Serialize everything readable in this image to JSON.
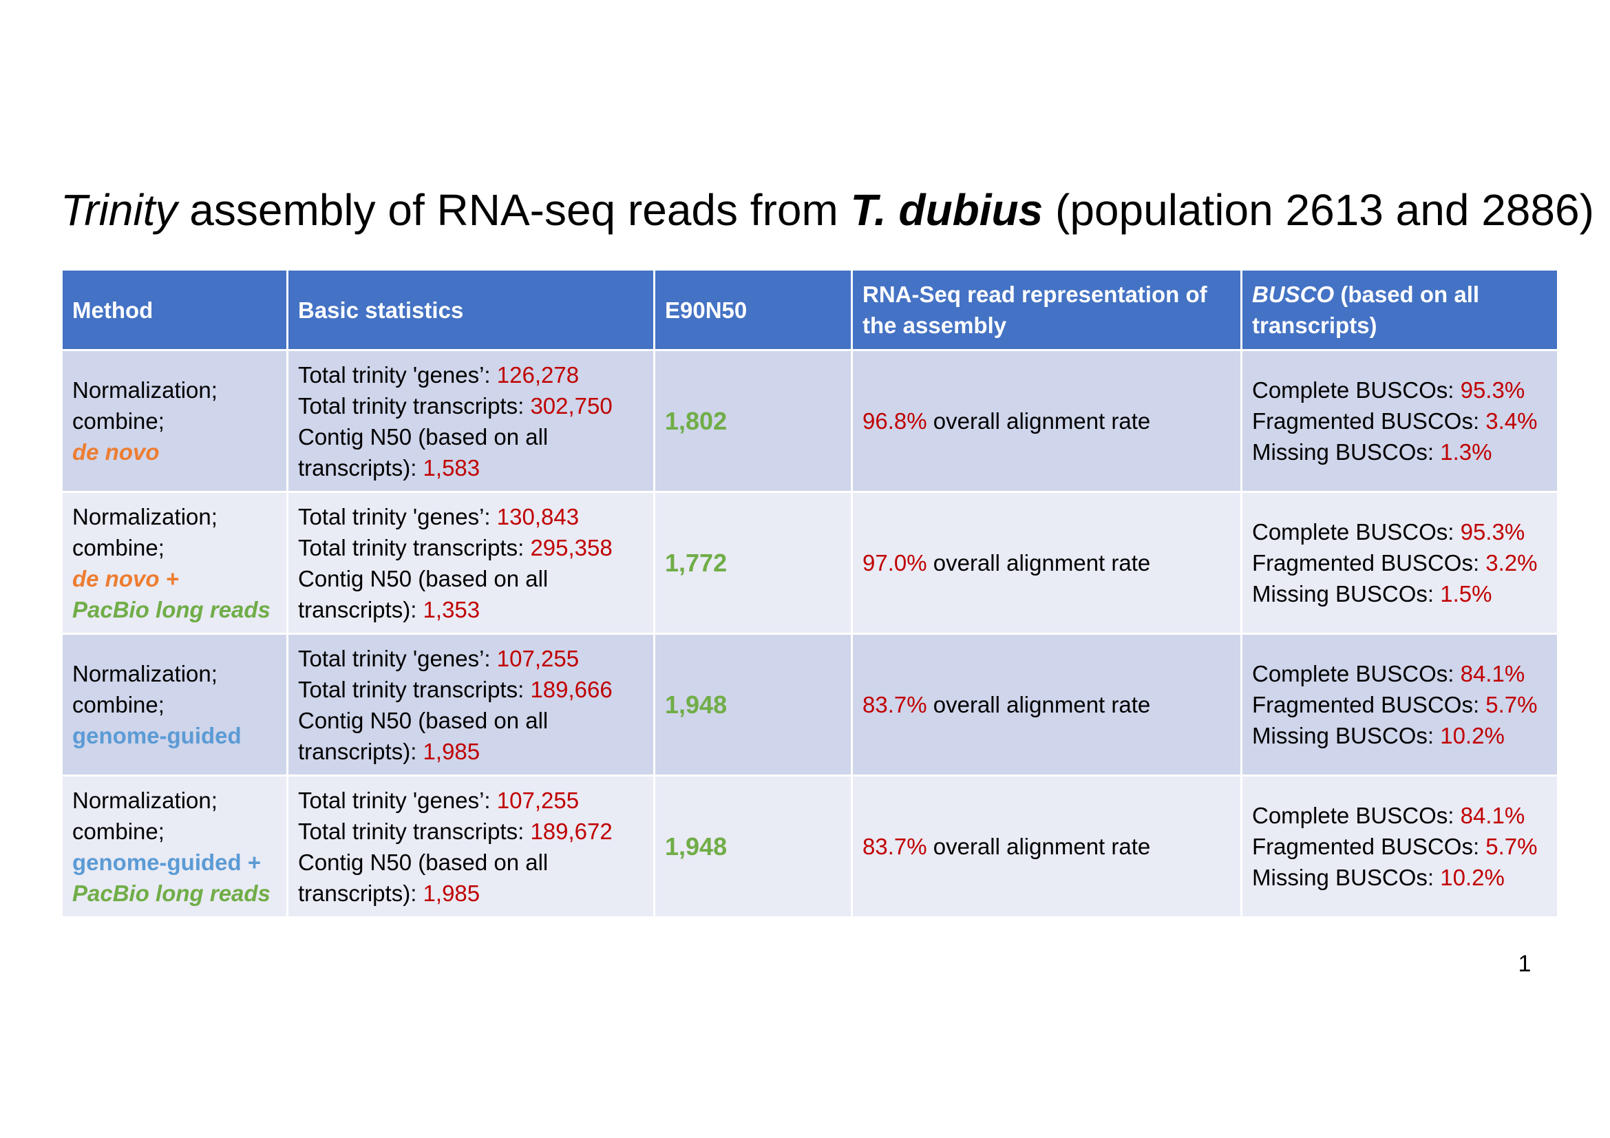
{
  "title": {
    "part1": "Trinity",
    "part2": " assembly of RNA-seq reads from ",
    "part3": "T. dubius",
    "part4": " (population 2613 and 2886)"
  },
  "headers": {
    "method": "Method",
    "basic": "Basic statistics",
    "e90n50": "E90N50",
    "rnaseq": "RNA-Seq read representation of the assembly",
    "busco_italic": "BUSCO",
    "busco_rest": " (based on all transcripts)"
  },
  "labels": {
    "genes": "Total trinity 'genes’: ",
    "transcripts": "Total trinity transcripts: ",
    "n50_a": "Contig N50 (based on all",
    "n50_b": "transcripts): ",
    "alignment": " overall alignment rate",
    "complete": "Complete BUSCOs: ",
    "fragmented": "Fragmented BUSCOs: ",
    "missing": "Missing BUSCOs: ",
    "norm": "Normalization;",
    "combine": "combine;"
  },
  "rows": [
    {
      "method_a": "de novo",
      "method_b": "",
      "genes": "126,278",
      "transcripts": "302,750",
      "n50": "1,583",
      "e90n50": "1,802",
      "alignment": "96.8%",
      "complete": "95.3%",
      "fragmented": "3.4%",
      "missing": "1.3%"
    },
    {
      "method_a": "de novo +",
      "method_b": "PacBio long reads",
      "genes": "130,843",
      "transcripts": "295,358",
      "n50": "1,353",
      "e90n50": "1,772",
      "alignment": "97.0%",
      "complete": "95.3%",
      "fragmented": "3.2%",
      "missing": "1.5%"
    },
    {
      "method_a": "genome-guided",
      "method_b": "",
      "genes": "107,255",
      "transcripts": "189,666",
      "n50": "1,985",
      "e90n50": "1,948",
      "alignment": "83.7%",
      "complete": "84.1%",
      "fragmented": "5.7%",
      "missing": "10.2%"
    },
    {
      "method_a": "genome-guided +",
      "method_b": "PacBio long reads",
      "genes": "107,255",
      "transcripts": "189,672",
      "n50": "1,985",
      "e90n50": "1,948",
      "alignment": "83.7%",
      "complete": "84.1%",
      "fragmented": "5.7%",
      "missing": "10.2%"
    }
  ],
  "page_number": "1",
  "colors": {
    "header_bg": "#4472c4",
    "row_dark": "#cfd5ea",
    "row_light": "#e9ebf5",
    "value_red": "#c00000",
    "green": "#70ad47",
    "orange": "#ed7d31",
    "blue": "#5b9bd5"
  }
}
